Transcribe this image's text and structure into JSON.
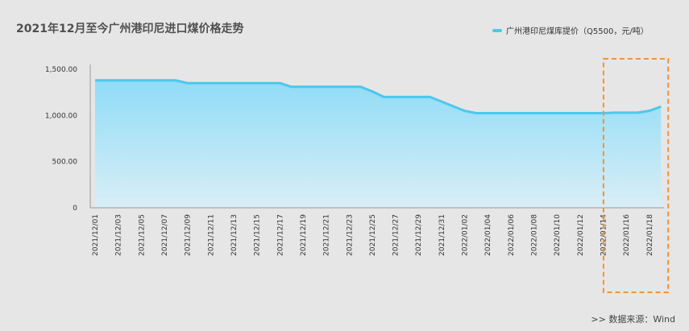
{
  "header": {
    "title": "2021年12月至今广州港印尼进口煤价格走势",
    "legend_label": "广州港印尼煤库提价（Q5500，元/吨）"
  },
  "footer": {
    "source": ">>  数据来源：Wind"
  },
  "colors": {
    "line": "#4cc7ee",
    "fill_top": "#8fdcf6",
    "fill_bottom": "#d9eef6",
    "highlight_box": "#f0923a"
  },
  "chart_data": {
    "type": "area",
    "title": "2021年12月至今广州港印尼进口煤价格走势",
    "xlabel": "",
    "ylabel": "",
    "ylim": [
      0,
      1500
    ],
    "yticks": [
      0,
      500,
      1000,
      1500
    ],
    "ytick_labels": [
      "0",
      "500.00",
      "1,000.00",
      "1,500.00"
    ],
    "grid": false,
    "legend_position": "top-right",
    "x_tick_labels": [
      "2021/12/01",
      "2021/12/03",
      "2021/12/05",
      "2021/12/07",
      "2021/12/09",
      "2021/12/11",
      "2021/12/13",
      "2021/12/15",
      "2021/12/17",
      "2021/12/19",
      "2021/12/21",
      "2021/12/23",
      "2021/12/25",
      "2021/12/27",
      "2021/12/29",
      "2021/12/31",
      "2022/01/02",
      "2022/01/04",
      "2022/01/06",
      "2022/01/08",
      "2022/01/10",
      "2022/01/12",
      "2022/01/14",
      "2022/01/16",
      "2022/01/18"
    ],
    "x": [
      "2021/12/01",
      "2021/12/02",
      "2021/12/03",
      "2021/12/04",
      "2021/12/05",
      "2021/12/06",
      "2021/12/07",
      "2021/12/08",
      "2021/12/09",
      "2021/12/10",
      "2021/12/11",
      "2021/12/12",
      "2021/12/13",
      "2021/12/14",
      "2021/12/15",
      "2021/12/16",
      "2021/12/17",
      "2021/12/18",
      "2021/12/19",
      "2021/12/20",
      "2021/12/21",
      "2021/12/22",
      "2021/12/23",
      "2021/12/24",
      "2021/12/25",
      "2021/12/26",
      "2021/12/27",
      "2021/12/28",
      "2021/12/29",
      "2021/12/30",
      "2021/12/31",
      "2022/01/01",
      "2022/01/02",
      "2022/01/03",
      "2022/01/04",
      "2022/01/05",
      "2022/01/06",
      "2022/01/07",
      "2022/01/08",
      "2022/01/09",
      "2022/01/10",
      "2022/01/11",
      "2022/01/12",
      "2022/01/13",
      "2022/01/14",
      "2022/01/15",
      "2022/01/16",
      "2022/01/17",
      "2022/01/18",
      "2022/01/19"
    ],
    "series": [
      {
        "name": "广州港印尼煤库提价（Q5500，元/吨）",
        "values": [
          1380,
          1380,
          1380,
          1380,
          1380,
          1380,
          1380,
          1380,
          1350,
          1350,
          1350,
          1350,
          1350,
          1350,
          1350,
          1350,
          1350,
          1310,
          1310,
          1310,
          1310,
          1310,
          1310,
          1310,
          1260,
          1200,
          1200,
          1200,
          1200,
          1200,
          1150,
          1100,
          1050,
          1025,
          1025,
          1025,
          1025,
          1025,
          1025,
          1025,
          1025,
          1025,
          1025,
          1025,
          1025,
          1030,
          1030,
          1030,
          1050,
          1095
        ]
      }
    ],
    "highlight_range": [
      "2022/01/15",
      "2022/01/19"
    ]
  }
}
